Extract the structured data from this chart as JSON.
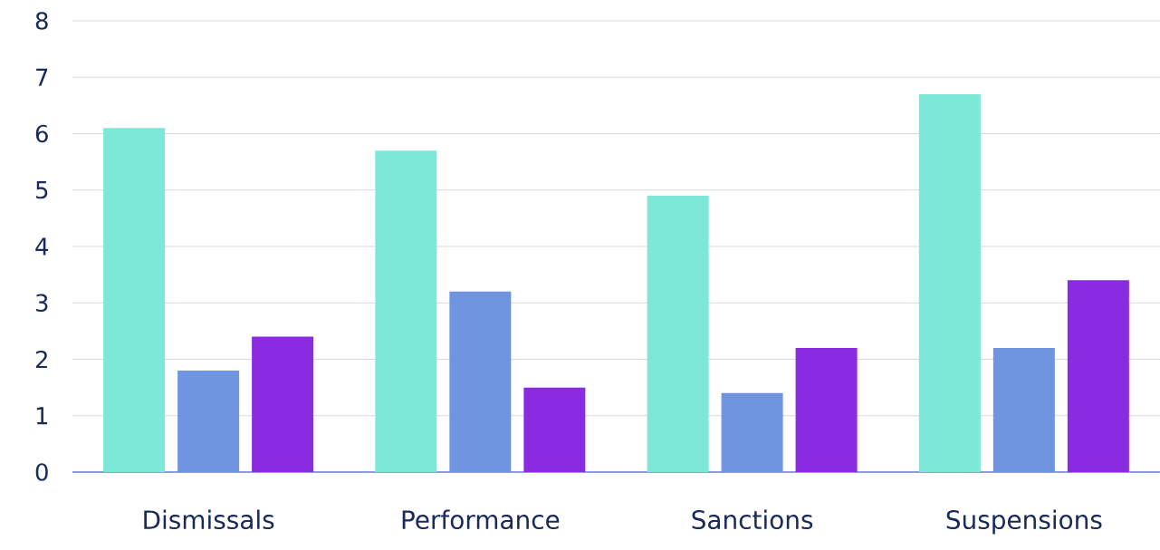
{
  "chart_data": {
    "type": "bar",
    "categories": [
      "Dismissals",
      "Performance",
      "Sanctions",
      "Suspensions"
    ],
    "series": [
      {
        "color": "#7de8d8",
        "values": [
          6.1,
          5.7,
          4.9,
          6.7
        ]
      },
      {
        "color": "#6f94e0",
        "values": [
          1.8,
          3.2,
          1.4,
          2.2
        ]
      },
      {
        "color": "#8a2be2",
        "values": [
          2.4,
          1.5,
          2.2,
          3.4
        ]
      }
    ],
    "ylim": [
      0,
      8
    ],
    "yticks": [
      0,
      1,
      2,
      3,
      4,
      5,
      6,
      7,
      8
    ],
    "grid": "y"
  }
}
